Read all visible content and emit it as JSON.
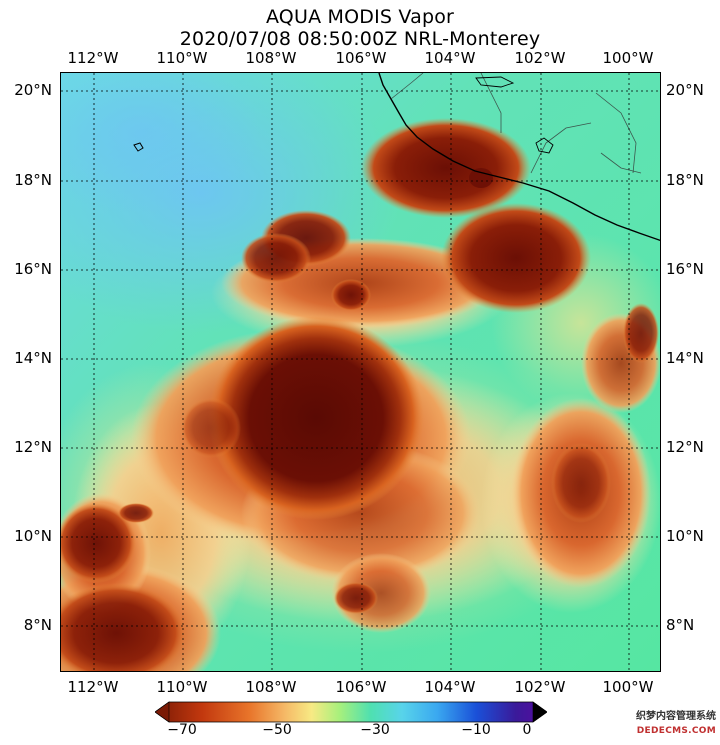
{
  "header": {
    "line1": "AQUA MODIS Vapor",
    "line2": "2020/07/08 08:50:00Z NRL-Monterey"
  },
  "map": {
    "top_longitude_labels": [
      "112°W",
      "110°W",
      "108°W",
      "106°W",
      "104°W",
      "102°W",
      "100°W"
    ],
    "bottom_longitude_labels": [
      "112°W",
      "110°W",
      "108°W",
      "106°W",
      "104°W",
      "102°W",
      "100°W"
    ],
    "left_latitude_labels": [
      "20°N",
      "18°N",
      "16°N",
      "14°N",
      "12°N",
      "10°N",
      "8°N"
    ],
    "right_latitude_labels": [
      "20°N",
      "18°N",
      "16°N",
      "14°N",
      "12°N",
      "10°N",
      "8°N"
    ],
    "colors": {
      "ocean_clear": "#5ee6a8",
      "moist_cyan": "#66ccee",
      "cloud_orange": "#e8742a",
      "cloud_dark": "#6b0f05",
      "coastline": "#000000",
      "grid": "#000000"
    }
  },
  "colorbar": {
    "tick_labels": [
      "−70",
      "−50",
      "−30",
      "−10",
      "0"
    ],
    "colors": [
      "#7a1a05",
      "#d8451a",
      "#f2a24a",
      "#f7e87a",
      "#a8f07c",
      "#4fe0b0",
      "#5fd2ea",
      "#38a8f0",
      "#1a4fd8",
      "#3a1a9a",
      "#000000"
    ]
  },
  "watermark": {
    "line1": "织梦内容管理系统",
    "line2": "DEDECMS.COM"
  }
}
